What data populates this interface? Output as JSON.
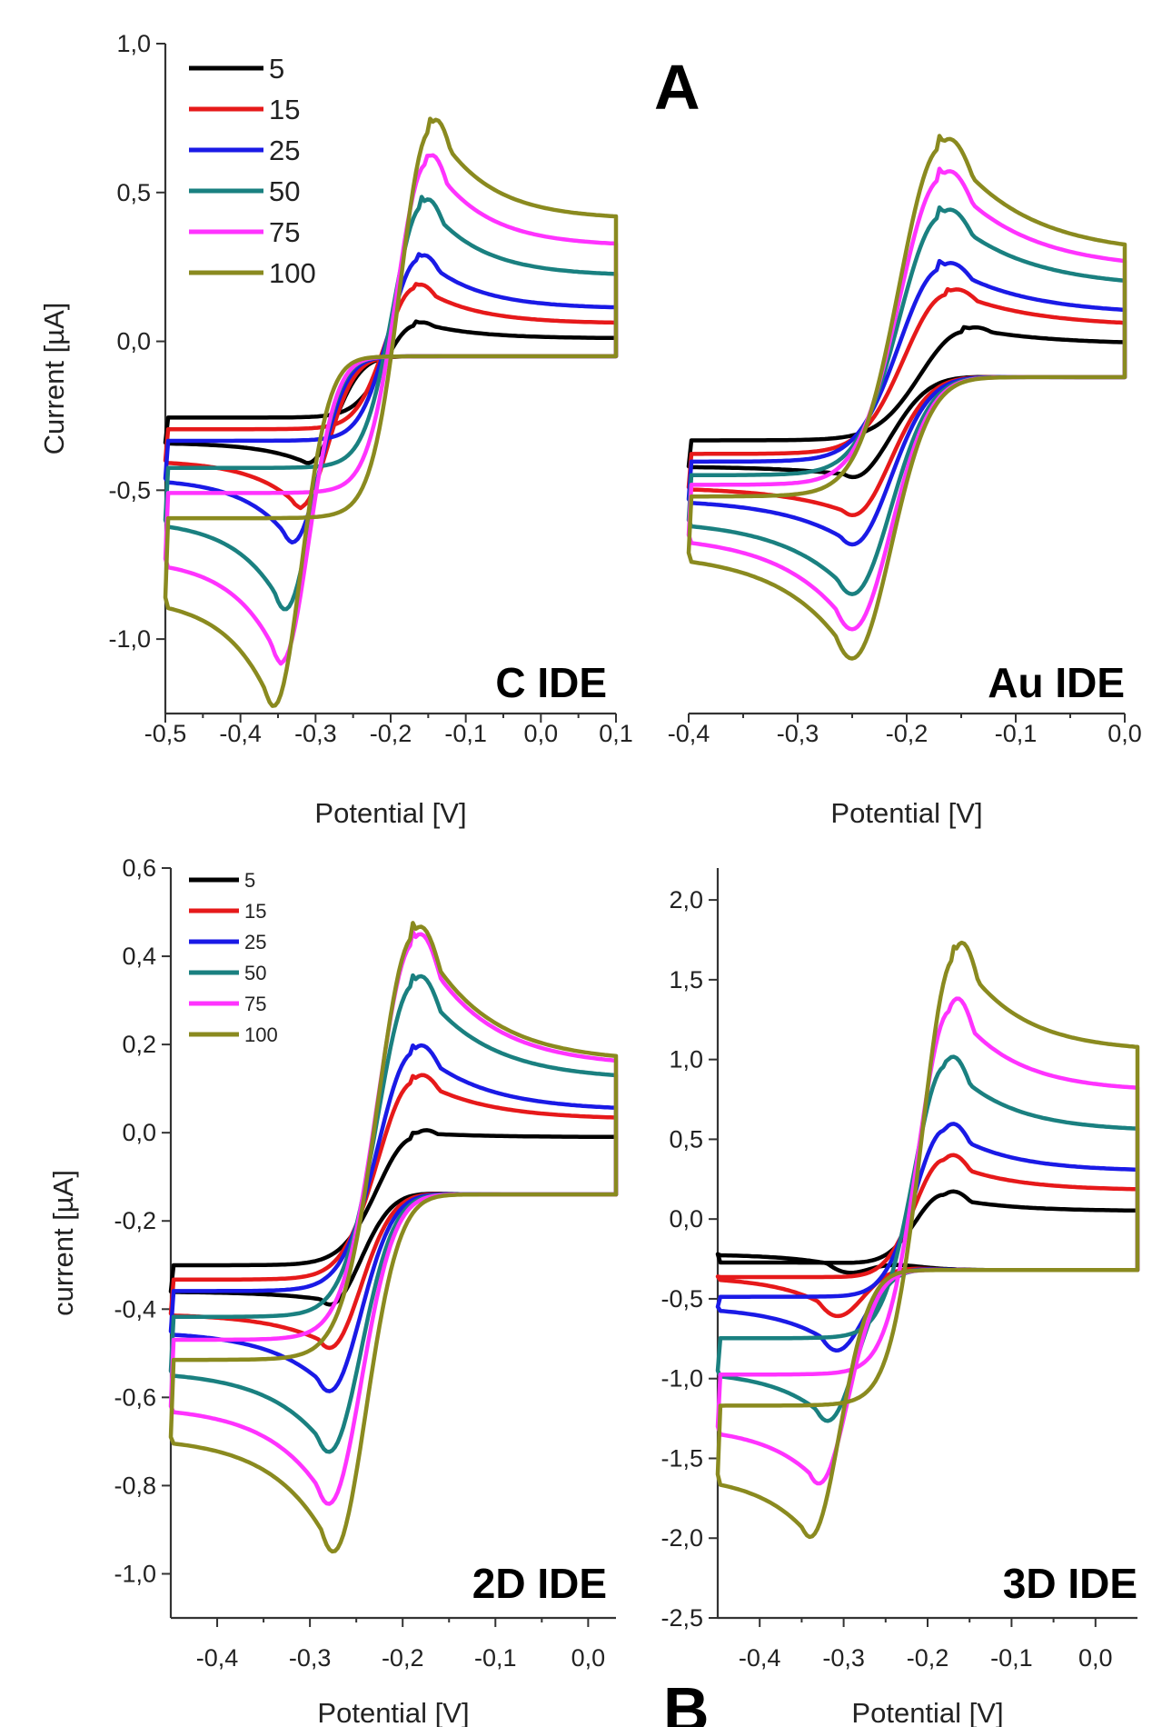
{
  "figure": {
    "letters": [
      "A",
      "B"
    ],
    "colors": {
      "5": "#000000",
      "15": "#e6191a",
      "25": "#1a1ae6",
      "50": "#1a8080",
      "75": "#ff33ff",
      "100": "#8a8a1f"
    }
  },
  "chart_data": [
    {
      "type": "line",
      "panel_label": "C IDE",
      "xlabel": "Potential [V]",
      "ylabel": "Current [µA]",
      "xlim": [
        -0.5,
        0.1
      ],
      "ylim": [
        -1.25,
        1.0
      ],
      "xticks": [
        "-0,5",
        "-0,4",
        "-0,3",
        "-0,2",
        "-0,1",
        "0,0",
        "0,1"
      ],
      "yticks": [
        "-1,0",
        "-0,5",
        "0,0",
        "0,5",
        "1,0"
      ],
      "legend_position": "top-left",
      "series": [
        {
          "name": "5",
          "ox": -0.17,
          "oy": 0.07,
          "rx": -0.31,
          "ry": -0.41,
          "left": -0.34,
          "right": 0.01,
          "mid": -0.1
        },
        {
          "name": "15",
          "ox": -0.17,
          "oy": 0.2,
          "rx": -0.32,
          "ry": -0.56,
          "left": -0.4,
          "right": 0.06,
          "mid": -0.1
        },
        {
          "name": "25",
          "ox": -0.165,
          "oy": 0.3,
          "rx": -0.33,
          "ry": -0.68,
          "left": -0.46,
          "right": 0.11,
          "mid": -0.1
        },
        {
          "name": "50",
          "ox": -0.16,
          "oy": 0.49,
          "rx": -0.34,
          "ry": -0.91,
          "left": -0.6,
          "right": 0.22,
          "mid": -0.1
        },
        {
          "name": "75",
          "ox": -0.155,
          "oy": 0.64,
          "rx": -0.345,
          "ry": -1.09,
          "left": -0.73,
          "right": 0.32,
          "mid": -0.1
        },
        {
          "name": "100",
          "ox": -0.15,
          "oy": 0.76,
          "rx": -0.355,
          "ry": -1.24,
          "left": -0.86,
          "right": 0.41,
          "mid": -0.1
        }
      ]
    },
    {
      "type": "line",
      "panel_label": "Au IDE",
      "xlabel": "Potential [V]",
      "ylabel": "",
      "xlim": [
        -0.4,
        0.0
      ],
      "ylim": [
        -1.25,
        1.0
      ],
      "xticks": [
        "-0,4",
        "-0,3",
        "-0,2",
        "-0,1",
        "0,0"
      ],
      "yticks": [],
      "series": [
        {
          "name": "5",
          "ox": -0.15,
          "oy": 0.05,
          "rx": -0.25,
          "ry": -0.45,
          "left": -0.42,
          "right": -0.01,
          "mid": -0.17
        },
        {
          "name": "15",
          "ox": -0.165,
          "oy": 0.18,
          "rx": -0.25,
          "ry": -0.58,
          "left": -0.49,
          "right": 0.05,
          "mid": -0.17
        },
        {
          "name": "25",
          "ox": -0.17,
          "oy": 0.27,
          "rx": -0.25,
          "ry": -0.68,
          "left": -0.53,
          "right": 0.09,
          "mid": -0.17
        },
        {
          "name": "50",
          "ox": -0.17,
          "oy": 0.45,
          "rx": -0.25,
          "ry": -0.85,
          "left": -0.6,
          "right": 0.18,
          "mid": -0.17
        },
        {
          "name": "75",
          "ox": -0.17,
          "oy": 0.58,
          "rx": -0.25,
          "ry": -0.97,
          "left": -0.65,
          "right": 0.24,
          "mid": -0.17
        },
        {
          "name": "100",
          "ox": -0.17,
          "oy": 0.69,
          "rx": -0.25,
          "ry": -1.07,
          "left": -0.71,
          "right": 0.29,
          "mid": -0.17
        }
      ]
    },
    {
      "type": "line",
      "panel_label": "2D IDE",
      "xlabel": "Potential [V]",
      "ylabel": "current [µA]",
      "xlim": [
        -0.45,
        0.03
      ],
      "ylim": [
        -1.1,
        0.6
      ],
      "xticks": [
        "-0,4",
        "-0,3",
        "-0,2",
        "-0,1",
        "0,0"
      ],
      "yticks": [
        "-1,0",
        "-0,8",
        "-0,6",
        "-0,4",
        "-0,2",
        "0,0",
        "0,2",
        "0,4",
        "0,6"
      ],
      "legend_position": "top-left",
      "series": [
        {
          "name": "5",
          "ox": -0.19,
          "oy": 0.0,
          "rx": -0.28,
          "ry": -0.38,
          "left": -0.36,
          "right": -0.01,
          "mid": -0.19
        },
        {
          "name": "15",
          "ox": -0.19,
          "oy": 0.13,
          "rx": -0.28,
          "ry": -0.48,
          "left": -0.41,
          "right": 0.03,
          "mid": -0.19
        },
        {
          "name": "25",
          "ox": -0.19,
          "oy": 0.2,
          "rx": -0.28,
          "ry": -0.58,
          "left": -0.45,
          "right": 0.05,
          "mid": -0.19
        },
        {
          "name": "50",
          "ox": -0.19,
          "oy": 0.36,
          "rx": -0.28,
          "ry": -0.72,
          "left": -0.54,
          "right": 0.12,
          "mid": -0.19
        },
        {
          "name": "75",
          "ox": -0.19,
          "oy": 0.46,
          "rx": -0.28,
          "ry": -0.84,
          "left": -0.62,
          "right": 0.15,
          "mid": -0.19
        },
        {
          "name": "100",
          "ox": -0.19,
          "oy": 0.48,
          "rx": -0.275,
          "ry": -0.95,
          "left": -0.69,
          "right": 0.16,
          "mid": -0.19
        }
      ]
    },
    {
      "type": "line",
      "panel_label": "3D IDE",
      "xlabel": "Potential [V]",
      "ylabel": "",
      "xlim": [
        -0.45,
        0.05
      ],
      "ylim": [
        -2.5,
        2.2
      ],
      "xticks": [
        "-0,4",
        "-0,3",
        "-0,2",
        "-0,1",
        "0,0"
      ],
      "yticks": [
        "-2,5",
        "-2,0",
        "-1,5",
        "-1,0",
        "-0,5",
        "0,0",
        "0,5",
        "1,0",
        "1,5",
        "2,0"
      ],
      "series": [
        {
          "name": "5",
          "ox": -0.18,
          "oy": 0.14,
          "rx": -0.3,
          "ry": -0.3,
          "left": -0.22,
          "right": 0.05,
          "mid": -0.37
        },
        {
          "name": "15",
          "ox": -0.18,
          "oy": 0.37,
          "rx": -0.31,
          "ry": -0.58,
          "left": -0.36,
          "right": 0.18,
          "mid": -0.37
        },
        {
          "name": "25",
          "ox": -0.18,
          "oy": 0.57,
          "rx": -0.31,
          "ry": -0.8,
          "left": -0.55,
          "right": 0.3,
          "mid": -0.37
        },
        {
          "name": "50",
          "ox": -0.18,
          "oy": 1.0,
          "rx": -0.32,
          "ry": -1.25,
          "left": -0.95,
          "right": 0.55,
          "mid": -0.37
        },
        {
          "name": "75",
          "ox": -0.175,
          "oy": 1.37,
          "rx": -0.33,
          "ry": -1.65,
          "left": -1.3,
          "right": 0.8,
          "mid": -0.37
        },
        {
          "name": "100",
          "ox": -0.17,
          "oy": 1.72,
          "rx": -0.34,
          "ry": -1.99,
          "left": -1.6,
          "right": 1.05,
          "mid": -0.37
        }
      ]
    }
  ]
}
